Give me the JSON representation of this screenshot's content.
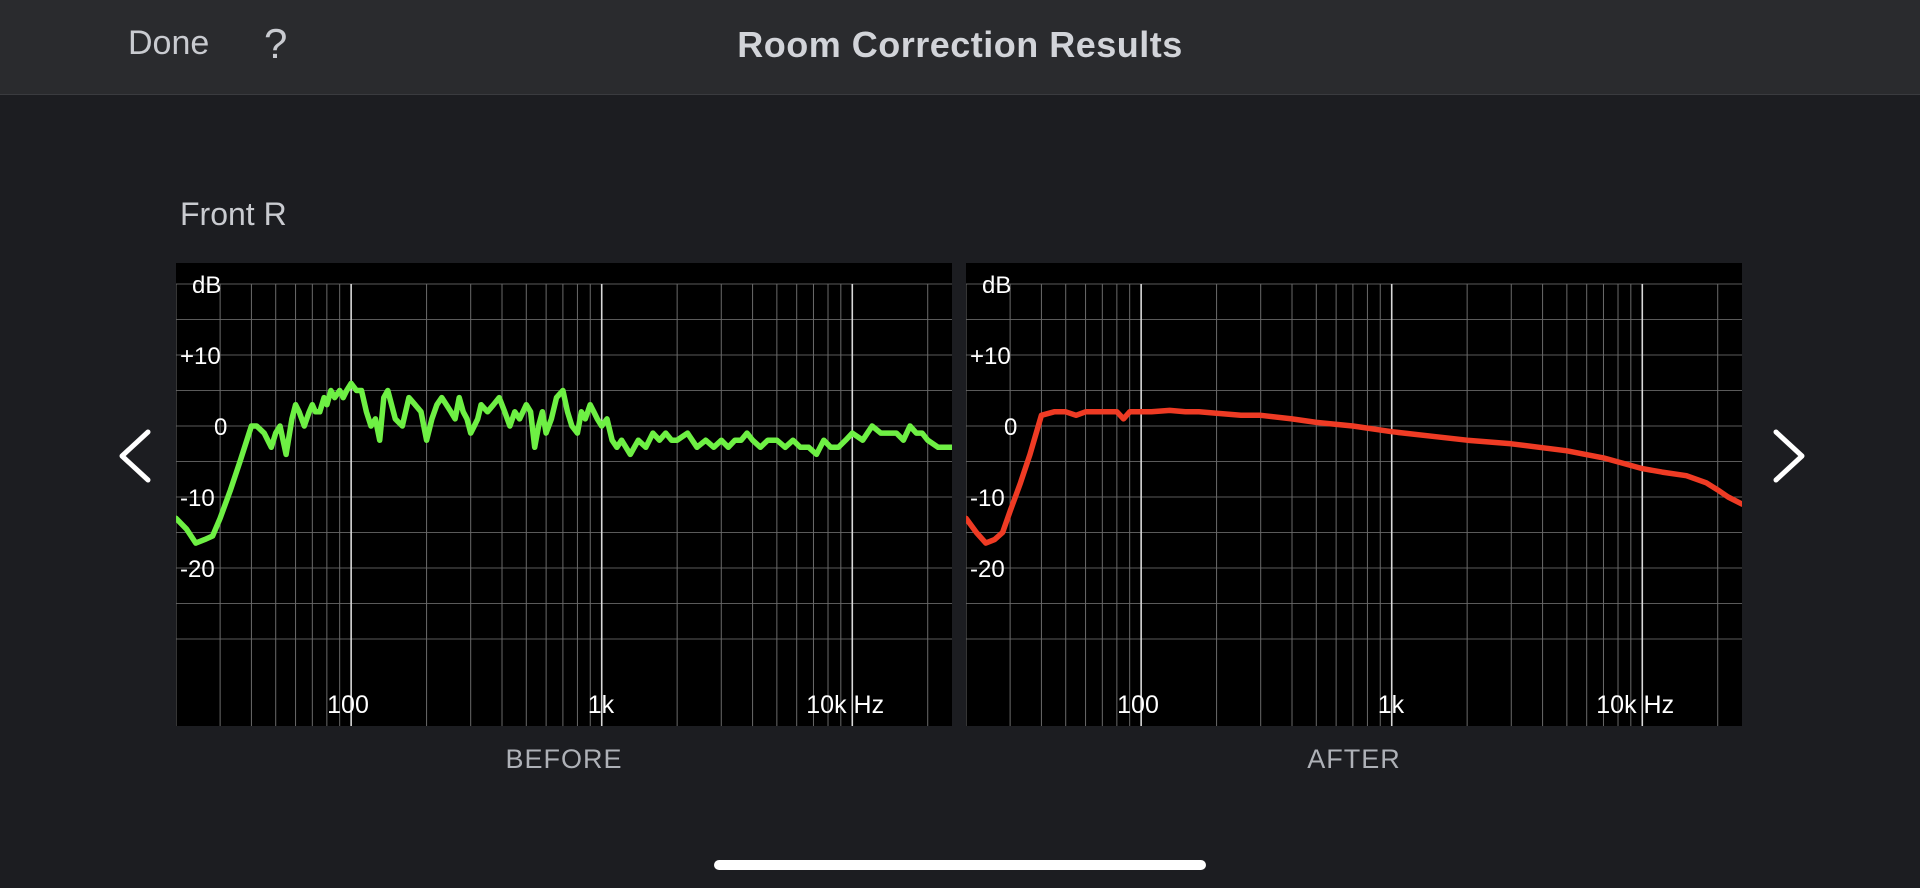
{
  "header": {
    "done_label": "Done",
    "help_label": "?",
    "title": "Room Correction Results"
  },
  "speaker_name": "Front R",
  "nav": {
    "prev_icon": "chevron-left-icon",
    "next_icon": "chevron-right-icon"
  },
  "chart_data": [
    {
      "type": "line",
      "caption": "BEFORE",
      "ylabel": "dB",
      "x_scale": "log",
      "xlim": [
        20,
        25000
      ],
      "ylim": [
        -30,
        20
      ],
      "x_ticks": [
        {
          "value": 100,
          "label": "100"
        },
        {
          "value": 1000,
          "label": "1k"
        },
        {
          "value": 10000,
          "label": "10k Hz"
        }
      ],
      "y_ticks": [
        {
          "value": 20,
          "label": "dB"
        },
        {
          "value": 10,
          "label": "+10"
        },
        {
          "value": 0,
          "label": "0"
        },
        {
          "value": -10,
          "label": "-10"
        },
        {
          "value": -20,
          "label": "-20"
        }
      ],
      "grid": true,
      "series": [
        {
          "color": "#6ef044",
          "x": [
            20,
            22,
            24,
            26,
            28,
            30,
            33,
            36,
            40,
            42,
            45,
            48,
            50,
            52,
            55,
            58,
            60,
            62,
            65,
            68,
            70,
            72,
            75,
            78,
            80,
            83,
            86,
            90,
            93,
            96,
            100,
            105,
            110,
            115,
            120,
            125,
            130,
            135,
            140,
            150,
            160,
            170,
            180,
            190,
            200,
            210,
            220,
            230,
            240,
            250,
            260,
            270,
            280,
            290,
            300,
            310,
            320,
            330,
            350,
            370,
            390,
            410,
            430,
            450,
            470,
            500,
            520,
            540,
            560,
            580,
            600,
            630,
            660,
            700,
            730,
            760,
            800,
            830,
            860,
            900,
            930,
            960,
            1000,
            1050,
            1100,
            1150,
            1200,
            1300,
            1400,
            1500,
            1600,
            1700,
            1800,
            1900,
            2000,
            2200,
            2400,
            2600,
            2800,
            3000,
            3200,
            3400,
            3600,
            3800,
            4000,
            4300,
            4600,
            5000,
            5400,
            5800,
            6200,
            6700,
            7200,
            7700,
            8200,
            8800,
            9400,
            10000,
            11000,
            12000,
            13000,
            14000,
            15000,
            16000,
            17000,
            18000,
            19000,
            20000,
            22000,
            25000
          ],
          "y": [
            -13,
            -14.5,
            -16.5,
            -16,
            -15.5,
            -13,
            -9,
            -5,
            0,
            0,
            -1,
            -3,
            -1,
            0,
            -4,
            1,
            3,
            2,
            0,
            2,
            3,
            2,
            2,
            4,
            3,
            5,
            4,
            5,
            4,
            5,
            6,
            5,
            5,
            2,
            0,
            1,
            -2,
            4,
            5,
            1,
            0,
            4,
            3,
            2,
            -2,
            1,
            3,
            4,
            3,
            2,
            1,
            4,
            2,
            1,
            -1,
            0,
            1,
            3,
            2,
            3,
            4,
            2,
            0,
            2,
            1,
            3,
            2,
            -3,
            0,
            2,
            -1,
            1,
            4,
            5,
            2,
            0,
            -1,
            2,
            1,
            3,
            2,
            1,
            0,
            1,
            -2,
            -3,
            -2,
            -4,
            -2,
            -3,
            -1,
            -2,
            -1,
            -2,
            -2,
            -1,
            -3,
            -2,
            -3,
            -2,
            -3,
            -2,
            -2,
            -1,
            -2,
            -3,
            -2,
            -2,
            -3,
            -2,
            -3,
            -3,
            -4,
            -2,
            -3,
            -3,
            -2,
            -1,
            -2,
            0,
            -1,
            -1,
            -1,
            -2,
            0,
            -1,
            -1,
            -2,
            -3,
            -3
          ]
        }
      ]
    },
    {
      "type": "line",
      "caption": "AFTER",
      "ylabel": "dB",
      "x_scale": "log",
      "xlim": [
        20,
        25000
      ],
      "ylim": [
        -30,
        20
      ],
      "x_ticks": [
        {
          "value": 100,
          "label": "100"
        },
        {
          "value": 1000,
          "label": "1k"
        },
        {
          "value": 10000,
          "label": "10k Hz"
        }
      ],
      "y_ticks": [
        {
          "value": 20,
          "label": "dB"
        },
        {
          "value": 10,
          "label": "+10"
        },
        {
          "value": 0,
          "label": "0"
        },
        {
          "value": -10,
          "label": "-10"
        },
        {
          "value": -20,
          "label": "-20"
        }
      ],
      "grid": true,
      "series": [
        {
          "color": "#ef3b24",
          "x": [
            20,
            22,
            24,
            26,
            28,
            30,
            33,
            36,
            40,
            45,
            50,
            55,
            60,
            65,
            70,
            80,
            85,
            90,
            100,
            110,
            130,
            150,
            170,
            200,
            250,
            300,
            400,
            500,
            700,
            1000,
            1500,
            2000,
            3000,
            5000,
            7000,
            10000,
            12000,
            15000,
            18000,
            20000,
            22000,
            25000
          ],
          "y": [
            -13,
            -15,
            -16.5,
            -16,
            -15,
            -12,
            -8,
            -4,
            1.5,
            2,
            2,
            1.5,
            2,
            2,
            2,
            2,
            1,
            2,
            2,
            2,
            2.2,
            2,
            2,
            1.8,
            1.5,
            1.5,
            1,
            0.5,
            0,
            -0.8,
            -1.5,
            -2,
            -2.5,
            -3.5,
            -4.5,
            -6,
            -6.5,
            -7,
            -8,
            -9,
            -10,
            -11
          ]
        }
      ]
    }
  ]
}
